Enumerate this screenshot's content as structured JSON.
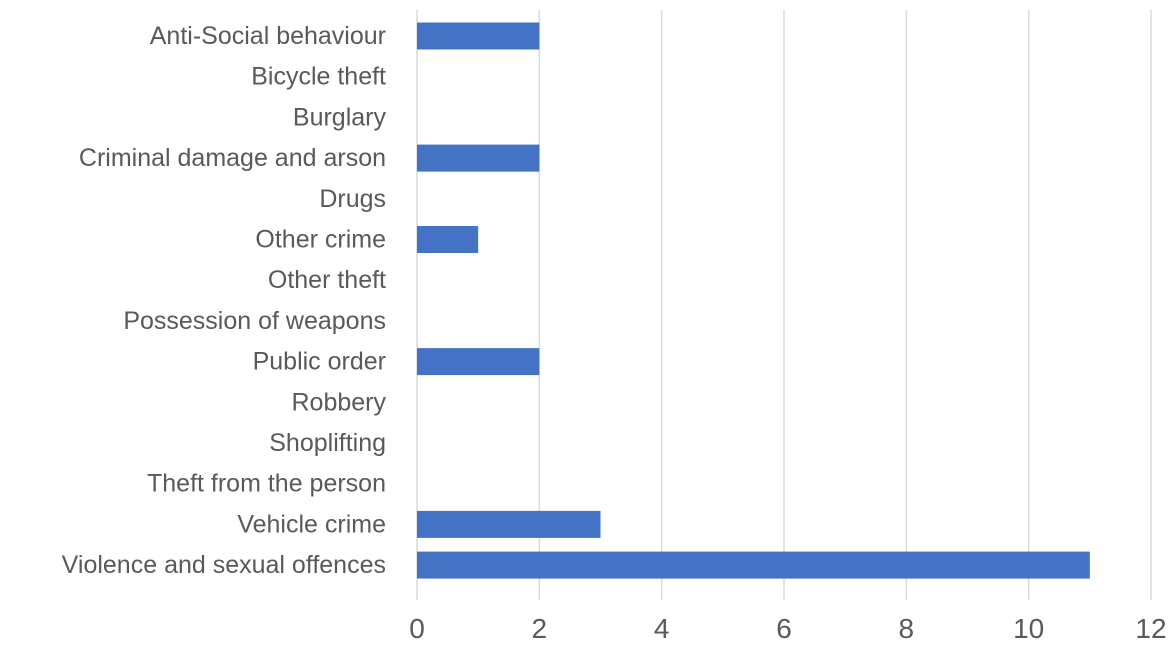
{
  "chart_data": {
    "type": "bar",
    "orientation": "horizontal",
    "categories": [
      "Anti-Social behaviour",
      "Bicycle theft",
      "Burglary",
      "Criminal damage and arson",
      "Drugs",
      "Other crime",
      "Other theft",
      "Possession of weapons",
      "Public order",
      "Robbery",
      "Shoplifting",
      "Theft from the person",
      "Vehicle crime",
      "Violence and sexual offences"
    ],
    "values": [
      2,
      0,
      0,
      2,
      0,
      1,
      0,
      0,
      2,
      0,
      0,
      0,
      3,
      11
    ],
    "xlim": [
      0,
      12
    ],
    "x_ticks": [
      "0",
      "2",
      "4",
      "6",
      "8",
      "10",
      "12"
    ],
    "title": "",
    "xlabel": "",
    "ylabel": "",
    "grid": "vertical",
    "legend": "none",
    "bar_color": "#4472C4",
    "grid_color": "#D9D9D9",
    "text_color": "#595959"
  }
}
